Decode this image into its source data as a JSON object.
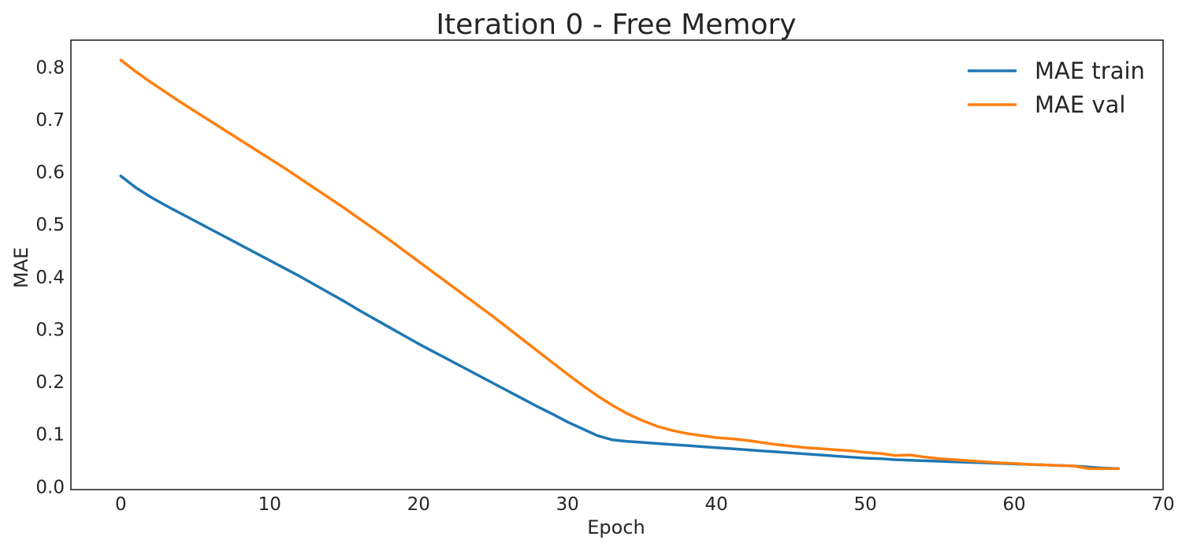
{
  "chart_data": {
    "type": "line",
    "title": "Iteration 0 - Free Memory",
    "xlabel": "Epoch",
    "ylabel": "MAE",
    "xlim": [
      -3.35,
      70
    ],
    "ylim": [
      -0.007,
      0.85
    ],
    "xticks": [
      "0",
      "10",
      "20",
      "30",
      "40",
      "50",
      "60",
      "70"
    ],
    "xtick_values": [
      0,
      10,
      20,
      30,
      40,
      50,
      60,
      70
    ],
    "yticks": [
      "0.0",
      "0.1",
      "0.2",
      "0.3",
      "0.4",
      "0.5",
      "0.6",
      "0.7",
      "0.8"
    ],
    "ytick_values": [
      0,
      0.1,
      0.2,
      0.3,
      0.4,
      0.5,
      0.6,
      0.7,
      0.8
    ],
    "grid": false,
    "legend_position": "top-right",
    "x": [
      0,
      1,
      2,
      3,
      4,
      5,
      6,
      7,
      8,
      9,
      10,
      11,
      12,
      13,
      14,
      15,
      16,
      17,
      18,
      19,
      20,
      21,
      22,
      23,
      24,
      25,
      26,
      27,
      28,
      29,
      30,
      31,
      32,
      33,
      34,
      35,
      36,
      37,
      38,
      39,
      40,
      41,
      42,
      43,
      44,
      45,
      46,
      47,
      48,
      49,
      50,
      51,
      52,
      53,
      54,
      55,
      56,
      57,
      58,
      59,
      60,
      61,
      62,
      63,
      64,
      65,
      66,
      67
    ],
    "series": [
      {
        "name": "MAE train",
        "color": "#1f77b4",
        "values": [
          0.591,
          0.569,
          0.551,
          0.535,
          0.52,
          0.505,
          0.49,
          0.475,
          0.46,
          0.445,
          0.43,
          0.415,
          0.4,
          0.384,
          0.368,
          0.352,
          0.335,
          0.319,
          0.303,
          0.287,
          0.271,
          0.256,
          0.241,
          0.226,
          0.211,
          0.196,
          0.181,
          0.166,
          0.151,
          0.137,
          0.122,
          0.109,
          0.096,
          0.088,
          0.085,
          0.083,
          0.081,
          0.079,
          0.077,
          0.075,
          0.073,
          0.071,
          0.069,
          0.067,
          0.065,
          0.063,
          0.061,
          0.059,
          0.057,
          0.055,
          0.053,
          0.052,
          0.05,
          0.049,
          0.048,
          0.047,
          0.046,
          0.045,
          0.044,
          0.043,
          0.042,
          0.041,
          0.04,
          0.039,
          0.038,
          0.036,
          0.034,
          0.033
        ]
      },
      {
        "name": "MAE val",
        "color": "#ff7f0e",
        "values": [
          0.812,
          0.79,
          0.77,
          0.751,
          0.732,
          0.714,
          0.696,
          0.678,
          0.66,
          0.642,
          0.624,
          0.606,
          0.587,
          0.568,
          0.549,
          0.53,
          0.51,
          0.49,
          0.47,
          0.449,
          0.428,
          0.407,
          0.386,
          0.365,
          0.344,
          0.323,
          0.301,
          0.279,
          0.257,
          0.235,
          0.213,
          0.192,
          0.172,
          0.154,
          0.138,
          0.125,
          0.114,
          0.106,
          0.1,
          0.096,
          0.092,
          0.09,
          0.087,
          0.083,
          0.079,
          0.076,
          0.073,
          0.071,
          0.069,
          0.067,
          0.064,
          0.062,
          0.058,
          0.059,
          0.055,
          0.052,
          0.05,
          0.048,
          0.046,
          0.044,
          0.043,
          0.041,
          0.04,
          0.039,
          0.038,
          0.033,
          0.033,
          0.033
        ]
      }
    ]
  }
}
